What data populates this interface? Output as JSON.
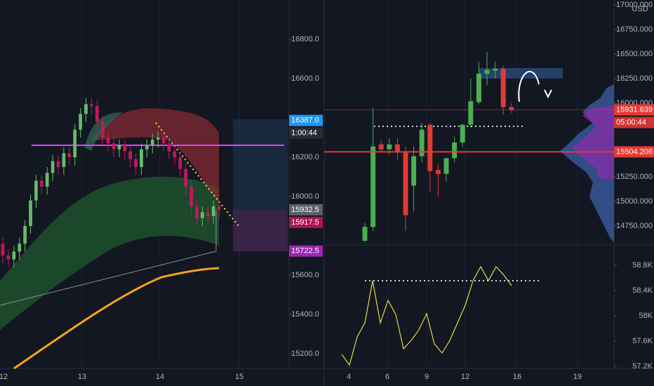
{
  "chart_data": [
    {
      "type": "candlestick",
      "x_labels": [
        "12",
        "13",
        "14",
        "15"
      ],
      "up_color": "#66bb6a",
      "down_color": "#c2185b",
      "open": [
        15760,
        15700,
        15680,
        15720,
        15760,
        15850,
        15980,
        16080,
        16050,
        16120,
        16180,
        16150,
        16220,
        16200,
        16340,
        16420,
        16470,
        16460,
        16380,
        16300,
        16270,
        16240,
        16260,
        16230,
        16190,
        16150,
        16240,
        16260,
        16290,
        16300,
        16270,
        16230,
        16200,
        16140,
        16050,
        15950,
        15890,
        15920,
        15900,
        15950
      ],
      "high": [
        15790,
        15730,
        15750,
        15790,
        15880,
        16010,
        16110,
        16110,
        16150,
        16210,
        16210,
        16250,
        16250,
        16370,
        16450,
        16500,
        16500,
        16490,
        16410,
        16330,
        16300,
        16290,
        16290,
        16260,
        16220,
        16270,
        16290,
        16320,
        16330,
        16330,
        16300,
        16260,
        16230,
        16170,
        16080,
        15980,
        15950,
        15950,
        15980,
        15980
      ],
      "low": [
        15660,
        15640,
        15640,
        15680,
        15720,
        15810,
        15940,
        16010,
        16010,
        16080,
        16110,
        16110,
        16160,
        16160,
        16300,
        16380,
        16420,
        16340,
        16260,
        16230,
        16200,
        16200,
        16190,
        16150,
        16110,
        16110,
        16200,
        16220,
        16250,
        16230,
        16190,
        16160,
        16100,
        16010,
        15910,
        15850,
        15850,
        15860,
        15860,
        15892.5
      ],
      "close": [
        15700,
        15680,
        15720,
        15760,
        15850,
        15980,
        16080,
        16050,
        16120,
        16180,
        16150,
        16220,
        16200,
        16340,
        16420,
        16470,
        16460,
        16380,
        16300,
        16270,
        16240,
        16260,
        16230,
        16190,
        16150,
        16240,
        16260,
        16290,
        16300,
        16270,
        16230,
        16200,
        16140,
        16050,
        15950,
        15890,
        15920,
        15900,
        15950,
        15932.5
      ],
      "ylim": [
        15125,
        17000
      ],
      "yticks": [
        {
          "value": 15200,
          "label": "15200.0"
        },
        {
          "value": 15400,
          "label": "15400.0"
        },
        {
          "value": 15600,
          "label": "15600.0"
        },
        {
          "value": 16000,
          "label": "16000.0"
        },
        {
          "value": 16200,
          "label": "16200.0"
        },
        {
          "value": 16600,
          "label": "16600.0"
        },
        {
          "value": 16800,
          "label": "16800.0"
        }
      ],
      "price_labels": [
        {
          "value": 16387,
          "label": "16387.0",
          "color": "#2196f3"
        },
        {
          "value": 15932.5,
          "label": "15932.5",
          "color": "#5d606b"
        },
        {
          "value": 15917.5,
          "label": "15917.5",
          "color": "#ad1457"
        },
        {
          "value": 15722.5,
          "label": "15722.5",
          "color": "#9c27b0"
        }
      ],
      "countdown": "1:00:44"
    },
    {
      "type": "candlestick",
      "x_labels": [
        "4",
        "6",
        "9",
        "12",
        "16",
        "19"
      ],
      "up_color": "#4caf50",
      "down_color": "#e53935",
      "open": [
        14600,
        14740,
        15580,
        15530,
        15580,
        15500,
        15160,
        15460,
        15780,
        15320,
        15280,
        15440,
        15600,
        15780,
        16010,
        16300,
        16330,
        16350,
        15960
      ],
      "high": [
        14780,
        15950,
        15620,
        15640,
        15640,
        15560,
        15560,
        15800,
        15800,
        15380,
        15440,
        15660,
        15790,
        16250,
        16420,
        16520,
        16420,
        16380,
        16000
      ],
      "low": [
        14580,
        14700,
        15500,
        15480,
        15420,
        14700,
        14900,
        15400,
        15100,
        15050,
        15200,
        15400,
        15550,
        15750,
        15990,
        16180,
        16250,
        15880,
        15900
      ],
      "close": [
        14740,
        15560,
        15530,
        15580,
        15500,
        14860,
        15460,
        15730,
        15310,
        15280,
        15440,
        15600,
        15780,
        16020,
        16300,
        16340,
        16350,
        15960,
        15931.639
      ],
      "ylim": [
        14564,
        17050
      ],
      "yticks": [
        {
          "value": 14750,
          "label": "14750.000"
        },
        {
          "value": 15000,
          "label": "15000.000"
        },
        {
          "value": 15250,
          "label": "15250.000"
        },
        {
          "value": 16000,
          "label": "16000.000"
        },
        {
          "value": 16250,
          "label": "16250.000"
        },
        {
          "value": 16500,
          "label": "16500.000"
        },
        {
          "value": 16750,
          "label": "16750.000"
        },
        {
          "value": 17000,
          "label": "17000.000"
        }
      ],
      "price_labels": [
        {
          "value": 15931.639,
          "label": "15931.639",
          "color": "#e53935"
        },
        {
          "value": 15504.206,
          "label": "15504.206",
          "color": "#e53935"
        }
      ],
      "countdown": "05:00:44",
      "currency": "USD"
    },
    {
      "type": "line",
      "color": "#e6d84a",
      "values": [
        57389,
        57222,
        57667,
        57889,
        58556,
        57889,
        58244,
        58022,
        57478,
        57611,
        57778,
        58033,
        57556,
        57411,
        57611,
        57889,
        58167,
        58556,
        58778,
        58556,
        58778,
        58644,
        58478
      ],
      "ylim": [
        57167,
        59111
      ],
      "yticks": [
        {
          "value": 57200,
          "label": "57.2K"
        },
        {
          "value": 57600,
          "label": "57.6K"
        },
        {
          "value": 58000,
          "label": "58K"
        },
        {
          "value": 58400,
          "label": "58.4K"
        },
        {
          "value": 58800,
          "label": "58.8K"
        }
      ]
    }
  ]
}
